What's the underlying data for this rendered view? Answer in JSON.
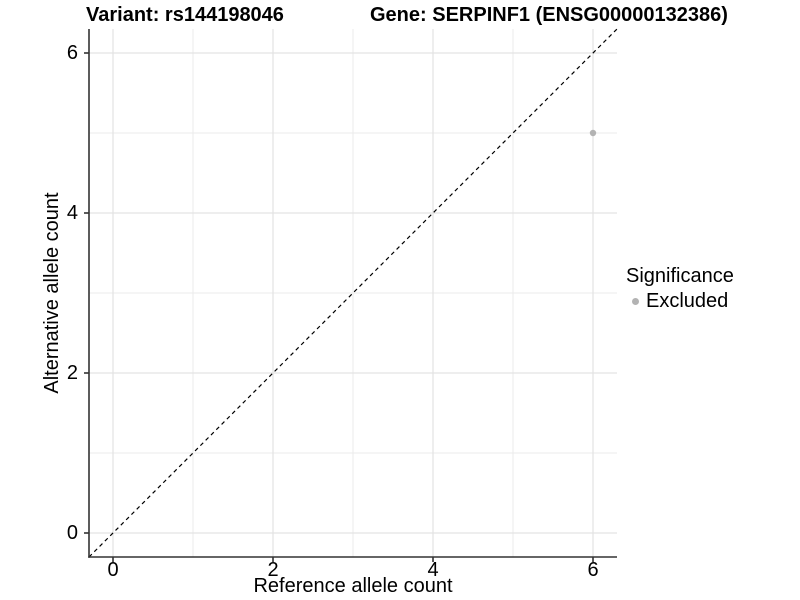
{
  "chart_data": {
    "type": "scatter",
    "title_variant": "Variant: rs144198046",
    "title_gene": "Gene: SERPINF1 (ENSG00000132386)",
    "xlabel": "Reference allele count",
    "ylabel": "Alternative allele count",
    "xlim": [
      -0.3,
      6.3
    ],
    "ylim": [
      -0.3,
      6.3
    ],
    "x_ticks": [
      0,
      2,
      4,
      6
    ],
    "y_ticks": [
      0,
      2,
      4,
      6
    ],
    "minor_gridlines": [
      1,
      3,
      5
    ],
    "grid": true,
    "identity_line": {
      "style": "dashed",
      "slope": 1,
      "intercept": 0,
      "color": "#000000"
    },
    "points": [
      {
        "x": 6,
        "y": 5,
        "significance": "Excluded"
      }
    ],
    "legend": {
      "title": "Significance",
      "position": "right",
      "items": [
        {
          "label": "Excluded",
          "color": "#b3b3b3"
        }
      ]
    },
    "colors": {
      "point": "#b3b3b3",
      "grid_major": "#e3e3e3",
      "grid_minor": "#ebebeb",
      "axis": "#333333",
      "text": "#000000",
      "background": "#ffffff"
    }
  }
}
